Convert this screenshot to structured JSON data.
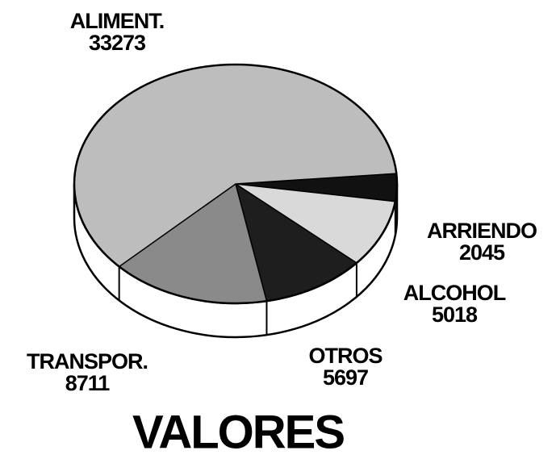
{
  "chart_data": {
    "type": "pie",
    "title": "VALORES",
    "categories": [
      "ALIMENT.",
      "ARRIENDO",
      "ALCOHOL",
      "OTROS",
      "TRANSPOR."
    ],
    "values": [
      33273,
      2045,
      5018,
      5697,
      8711
    ],
    "colors": [
      "#bdbdbd",
      "#111111",
      "#d9d9d9",
      "#1e1e1e",
      "#8a8a8a"
    ]
  }
}
